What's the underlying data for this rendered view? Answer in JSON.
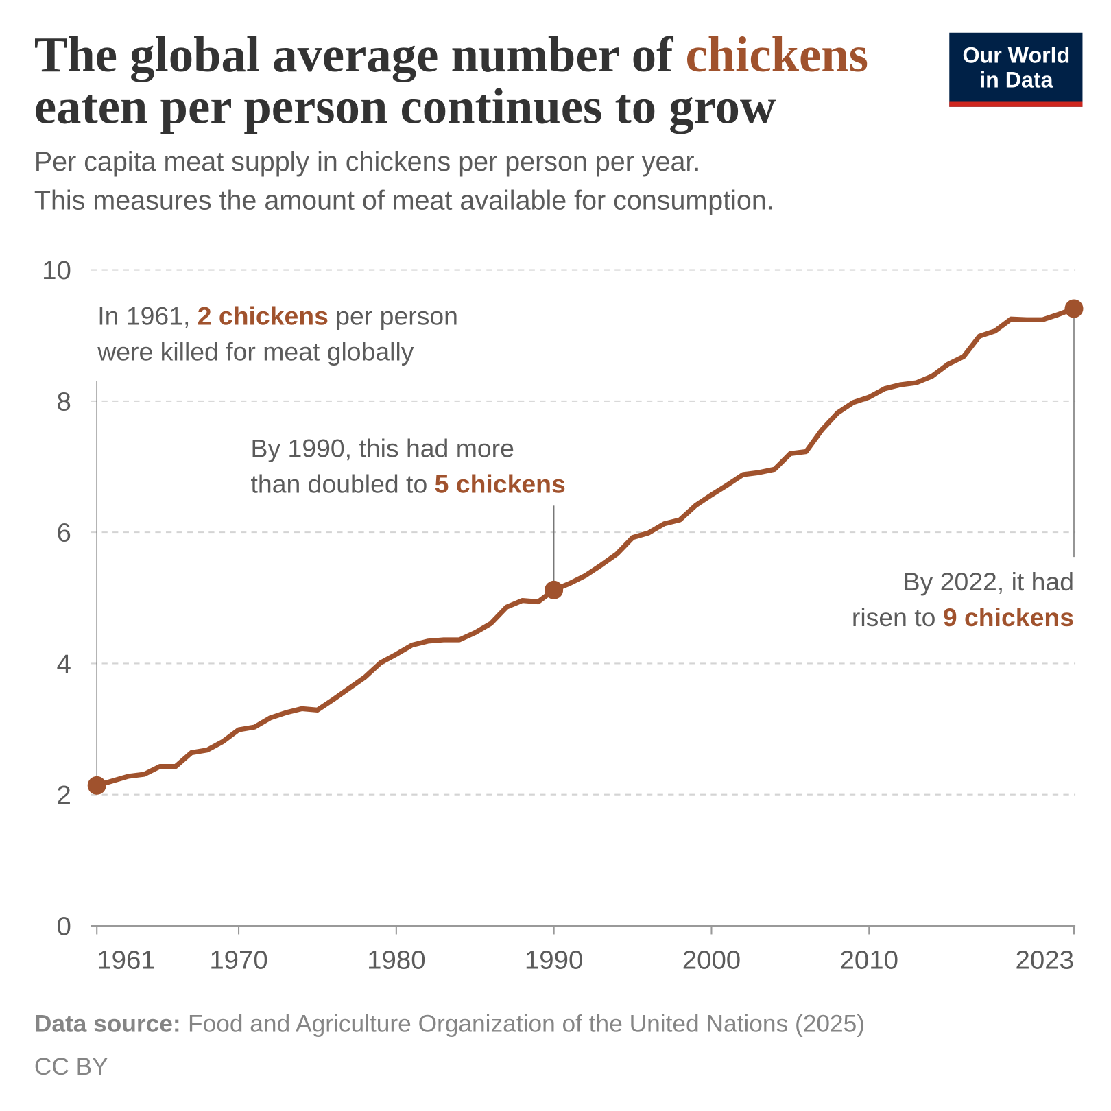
{
  "chart_data": {
    "type": "line",
    "title": {
      "lines": [
        [
          {
            "text": "The global average number of "
          },
          {
            "text": "chickens",
            "highlight": true
          }
        ],
        [
          {
            "text": "eaten per person continues to grow"
          }
        ]
      ]
    },
    "subtitle": [
      "Per capita meat supply in chickens per person per year.",
      "This measures the amount of meat available for consumption."
    ],
    "logo": [
      "Our World",
      "in Data"
    ],
    "color": "#a0522d",
    "x": [
      1961,
      1962,
      1963,
      1964,
      1965,
      1966,
      1967,
      1968,
      1969,
      1970,
      1971,
      1972,
      1973,
      1974,
      1975,
      1976,
      1977,
      1978,
      1979,
      1980,
      1981,
      1982,
      1983,
      1984,
      1985,
      1986,
      1987,
      1988,
      1989,
      1990,
      1991,
      1992,
      1993,
      1994,
      1995,
      1996,
      1997,
      1998,
      1999,
      2000,
      2001,
      2002,
      2003,
      2004,
      2005,
      2006,
      2007,
      2008,
      2009,
      2010,
      2011,
      2012,
      2013,
      2014,
      2015,
      2016,
      2017,
      2018,
      2019,
      2020,
      2021,
      2022,
      2023
    ],
    "values": [
      2.14,
      2.21,
      2.28,
      2.31,
      2.43,
      2.43,
      2.64,
      2.68,
      2.81,
      2.99,
      3.03,
      3.17,
      3.25,
      3.31,
      3.29,
      3.45,
      3.62,
      3.79,
      4.01,
      4.14,
      4.28,
      4.34,
      4.36,
      4.36,
      4.47,
      4.61,
      4.86,
      4.96,
      4.94,
      5.12,
      5.22,
      5.34,
      5.5,
      5.67,
      5.92,
      5.99,
      6.13,
      6.19,
      6.41,
      6.57,
      6.72,
      6.88,
      6.91,
      6.96,
      7.2,
      7.23,
      7.56,
      7.82,
      7.98,
      8.06,
      8.19,
      8.25,
      8.28,
      8.38,
      8.56,
      8.68,
      8.99,
      9.07,
      9.25,
      9.24,
      9.24,
      9.32,
      9.41
    ],
    "xlim": [
      1961,
      2023
    ],
    "xticks": [
      1961,
      1970,
      1980,
      1990,
      2000,
      2010,
      2023
    ],
    "ylim": [
      0,
      10
    ],
    "yticks": [
      0,
      2,
      4,
      6,
      8,
      10
    ],
    "grid": true,
    "annotations": [
      {
        "x": 1961,
        "lines": [
          [
            {
              "text": "In 1961, "
            },
            {
              "text": "2 chickens",
              "highlight": true
            },
            {
              "text": " per person"
            }
          ],
          [
            {
              "text": "were killed for meat globally"
            }
          ]
        ]
      },
      {
        "x": 1990,
        "lines": [
          [
            {
              "text": "By 1990, this had more"
            }
          ],
          [
            {
              "text": "than doubled to "
            },
            {
              "text": "5 chickens",
              "highlight": true
            }
          ]
        ]
      },
      {
        "x": 2023,
        "lines": [
          [
            {
              "text": "By 2022, it had"
            }
          ],
          [
            {
              "text": "risen to "
            },
            {
              "text": "9 chickens",
              "highlight": true
            }
          ]
        ]
      }
    ],
    "source_label": "Data source:",
    "source": "Food and Agriculture Organization of the United Nations (2025)",
    "license": "CC BY"
  }
}
